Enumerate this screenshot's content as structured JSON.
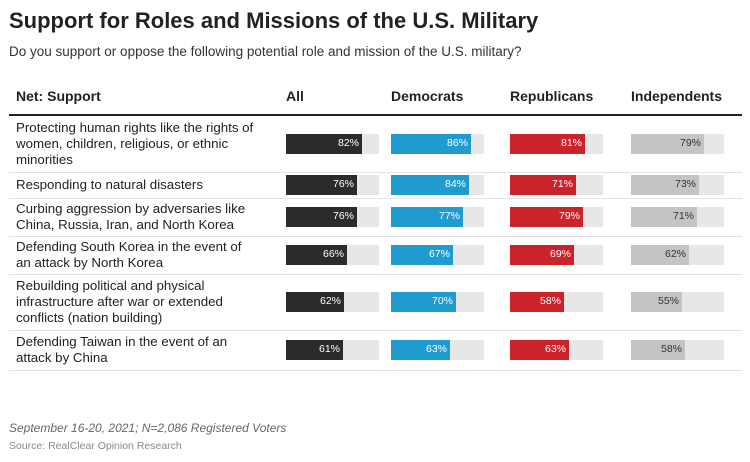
{
  "title": "Support for Roles and Missions of the U.S. Military",
  "subtitle": "Do you support or oppose the following potential role and mission of the U.S. military?",
  "footnote": "September 16-20, 2021; N=2,086 Registered Voters",
  "source": "Source: RealClear Opinion Research",
  "colors": {
    "All": "#2b2b2b",
    "Democrats": "#1f9bcf",
    "Republicans": "#cc2229",
    "Independents": "#c4c4c4",
    "track": "#e7e7e7"
  },
  "chart_data": {
    "type": "table",
    "columns": [
      "Net: Support",
      "All",
      "Democrats",
      "Republicans",
      "Independents"
    ],
    "unit": "%",
    "rows": [
      {
        "label": "Protecting human rights like the rights of women, children, religious, or ethnic minorities",
        "values": [
          82,
          86,
          81,
          79
        ]
      },
      {
        "label": "Responding to natural disasters",
        "values": [
          76,
          84,
          71,
          73
        ]
      },
      {
        "label": "Curbing aggression by adversaries like China, Russia, Iran, and North Korea",
        "values": [
          76,
          77,
          79,
          71
        ]
      },
      {
        "label": "Defending South Korea in the event of an attack by North Korea",
        "values": [
          66,
          67,
          69,
          62
        ]
      },
      {
        "label": "Rebuilding political and physical infrastructure after war or extended conflicts (nation building)",
        "values": [
          62,
          70,
          58,
          55
        ]
      },
      {
        "label": "Defending Taiwan in the event of an attack by China",
        "values": [
          61,
          63,
          63,
          58
        ]
      }
    ]
  }
}
